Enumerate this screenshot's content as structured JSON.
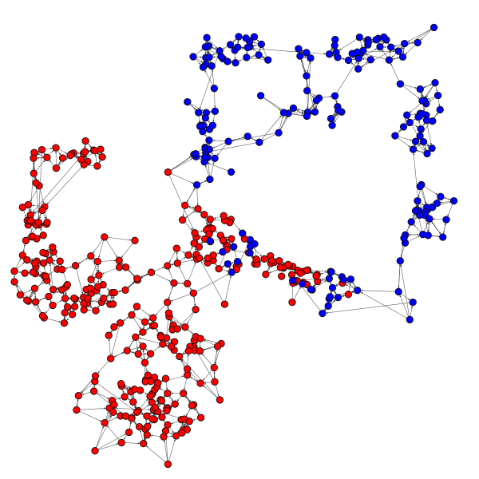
{
  "graph": {
    "directed": true,
    "node_count": 520,
    "groups": [
      {
        "name": "red",
        "color": "#ff0000",
        "approx_node_count": 330
      },
      {
        "name": "blue",
        "color": "#0000ff",
        "approx_node_count": 190
      }
    ],
    "edge_color": "#444444",
    "node_outline_color": "#111111",
    "background": "#ffffff"
  }
}
